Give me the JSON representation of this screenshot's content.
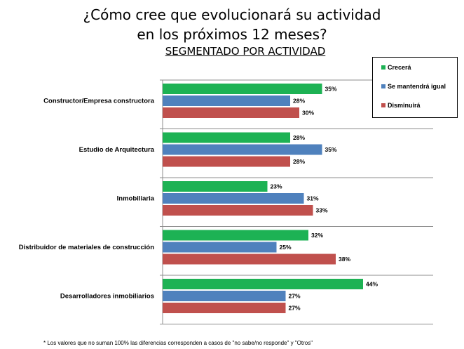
{
  "title_line1": "¿Cómo cree que evolucionará su actividad",
  "title_line2": "en los próximos 12 meses?",
  "subtitle": "SEGMENTADO POR ACTIVIDAD",
  "footnote": "* Los valores que no suman 100% las diferencias corresponden a casos de \"no sabe/no responde\" y \"Otros\"",
  "chart_data": {
    "type": "bar",
    "orientation": "horizontal",
    "title": "¿Cómo cree que evolucionará su actividad en los próximos 12 meses?",
    "subtitle": "SEGMENTADO POR ACTIVIDAD",
    "categories": [
      "Constructor/Empresa constructora",
      "Estudio de Arquitectura",
      "Inmobiliaria",
      "Distribuidor de materiales de construcción",
      "Desarrolladores inmobiliarios"
    ],
    "series": [
      {
        "name": "Crecerá",
        "color": "#1db254",
        "values": [
          35,
          28,
          23,
          32,
          44
        ]
      },
      {
        "name": "Se mantendrá igual",
        "color": "#4f81bd",
        "values": [
          28,
          35,
          31,
          25,
          27
        ]
      },
      {
        "name": "Disminuirá",
        "color": "#c0504d",
        "values": [
          30,
          28,
          33,
          38,
          27
        ]
      }
    ],
    "value_suffix": "%",
    "xlim": [
      0,
      100
    ],
    "grid": "horizontal separators between categories",
    "legend_position": "top-right"
  }
}
